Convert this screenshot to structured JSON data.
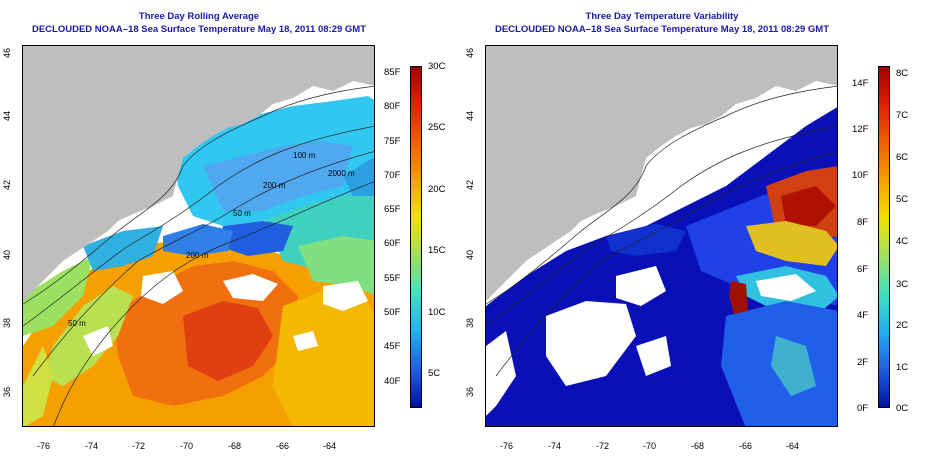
{
  "left_panel": {
    "title_line1": "Three Day Rolling Average",
    "title_line2": "DECLOUDED NOAA–18 Sea Surface Temperature May 18, 2011 08:29 GMT",
    "colorbar_f": [
      "85F",
      "80F",
      "75F",
      "70F",
      "65F",
      "60F",
      "55F",
      "50F",
      "45F",
      "40F"
    ],
    "colorbar_c": [
      "30C",
      "25C",
      "20C",
      "15C",
      "10C",
      "5C"
    ]
  },
  "right_panel": {
    "title_line1": "Three Day Temperature Variability",
    "title_line2": "DECLOUDED NOAA–18 Sea Surface Temperature May 18, 2011 08:29 GMT",
    "colorbar_f": [
      "14F",
      "12F",
      "10F",
      "8F",
      "6F",
      "4F",
      "2F",
      "0F"
    ],
    "colorbar_c": [
      "8C",
      "7C",
      "6C",
      "5C",
      "4C",
      "3C",
      "2C",
      "1C",
      "0C"
    ]
  },
  "axes": {
    "lon_ticks": [
      "-76",
      "-74",
      "-72",
      "-70",
      "-68",
      "-66",
      "-64"
    ],
    "lat_ticks": [
      "46",
      "44",
      "42",
      "40",
      "38",
      "36"
    ]
  },
  "contours": {
    "labels": [
      "100 m",
      "200 m",
      "2000 m",
      "50 m",
      "200 m",
      "50 m"
    ]
  },
  "colors": {
    "land": "#bebebe",
    "title": "#1a1aa6"
  }
}
